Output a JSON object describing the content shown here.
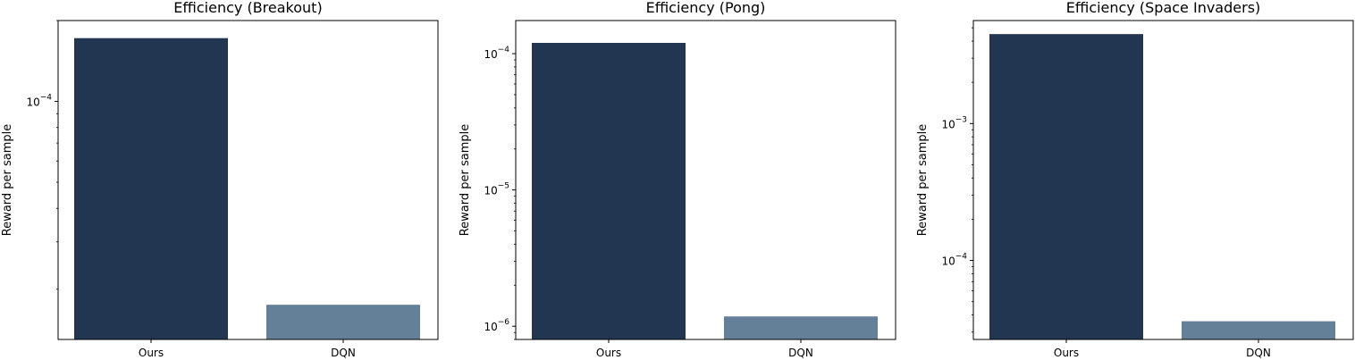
{
  "chart_data": [
    {
      "type": "bar",
      "title": "Efficiency (Breakout)",
      "xlabel": "",
      "ylabel": "Reward per sample",
      "yscale": "log",
      "categories": [
        "Ours",
        "DQN"
      ],
      "values": [
        0.000172,
        1.75e-05
      ],
      "ylim": [
        1.3e-05,
        0.0002
      ],
      "colors": [
        "#233651",
        "#647f98"
      ],
      "major_ticks": [
        {
          "value": 0.0001,
          "base": "10",
          "exp": "−4"
        }
      ]
    },
    {
      "type": "bar",
      "title": "Efficiency (Pong)",
      "xlabel": "",
      "ylabel": "Reward per sample",
      "yscale": "log",
      "categories": [
        "Ours",
        "DQN"
      ],
      "values": [
        0.00012,
        1.18e-06
      ],
      "ylim": [
        8e-07,
        0.000175
      ],
      "colors": [
        "#233651",
        "#647f98"
      ],
      "major_ticks": [
        {
          "value": 0.0001,
          "base": "10",
          "exp": "−4"
        },
        {
          "value": 1e-05,
          "base": "10",
          "exp": "−5"
        },
        {
          "value": 1e-06,
          "base": "10",
          "exp": "−6"
        }
      ]
    },
    {
      "type": "bar",
      "title": "Efficiency (Space Invaders)",
      "xlabel": "",
      "ylabel": "Reward per sample",
      "yscale": "log",
      "categories": [
        "Ours",
        "DQN"
      ],
      "values": [
        0.0045,
        3.6e-05
      ],
      "ylim": [
        2.65e-05,
        0.00565
      ],
      "colors": [
        "#233651",
        "#647f98"
      ],
      "major_ticks": [
        {
          "value": 0.001,
          "base": "10",
          "exp": "−3"
        },
        {
          "value": 0.0001,
          "base": "10",
          "exp": "−4"
        }
      ]
    }
  ]
}
